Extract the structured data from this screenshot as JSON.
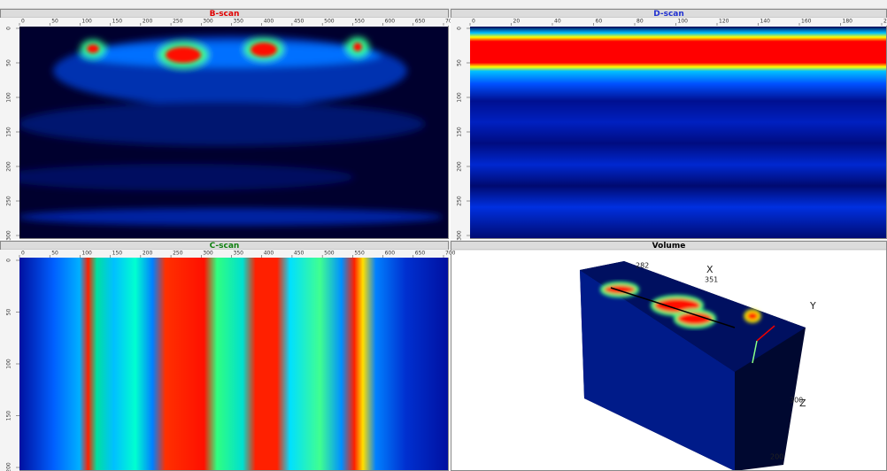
{
  "panels": [
    {
      "title": "B-scan",
      "x_ticks": [
        "0",
        "50",
        "100",
        "150",
        "200",
        "250",
        "300",
        "350",
        "400",
        "450",
        "500",
        "550",
        "600",
        "650",
        "700"
      ],
      "y_ticks": [
        "0",
        "50",
        "100",
        "150",
        "200",
        "250",
        "300"
      ]
    },
    {
      "title": "D-scan",
      "x_ticks": [
        "0",
        "20",
        "40",
        "60",
        "80",
        "100",
        "120",
        "140",
        "160",
        "180",
        "200"
      ],
      "y_ticks": [
        "0",
        "50",
        "100",
        "150",
        "200",
        "250",
        "300"
      ]
    },
    {
      "title": "C-scan",
      "x_ticks": [
        "0",
        "50",
        "100",
        "150",
        "200",
        "250",
        "300",
        "350",
        "400",
        "450",
        "500",
        "550",
        "600",
        "650",
        "700"
      ],
      "y_ticks": [
        "0",
        "50",
        "100",
        "150",
        "200"
      ]
    },
    {
      "title": "Volume",
      "labels": {
        "top": "282",
        "axis_x": "X",
        "x_value": "351",
        "axis_y": "Y",
        "z_value": "300",
        "axis_z": "Z",
        "bottom": "200"
      }
    }
  ]
}
